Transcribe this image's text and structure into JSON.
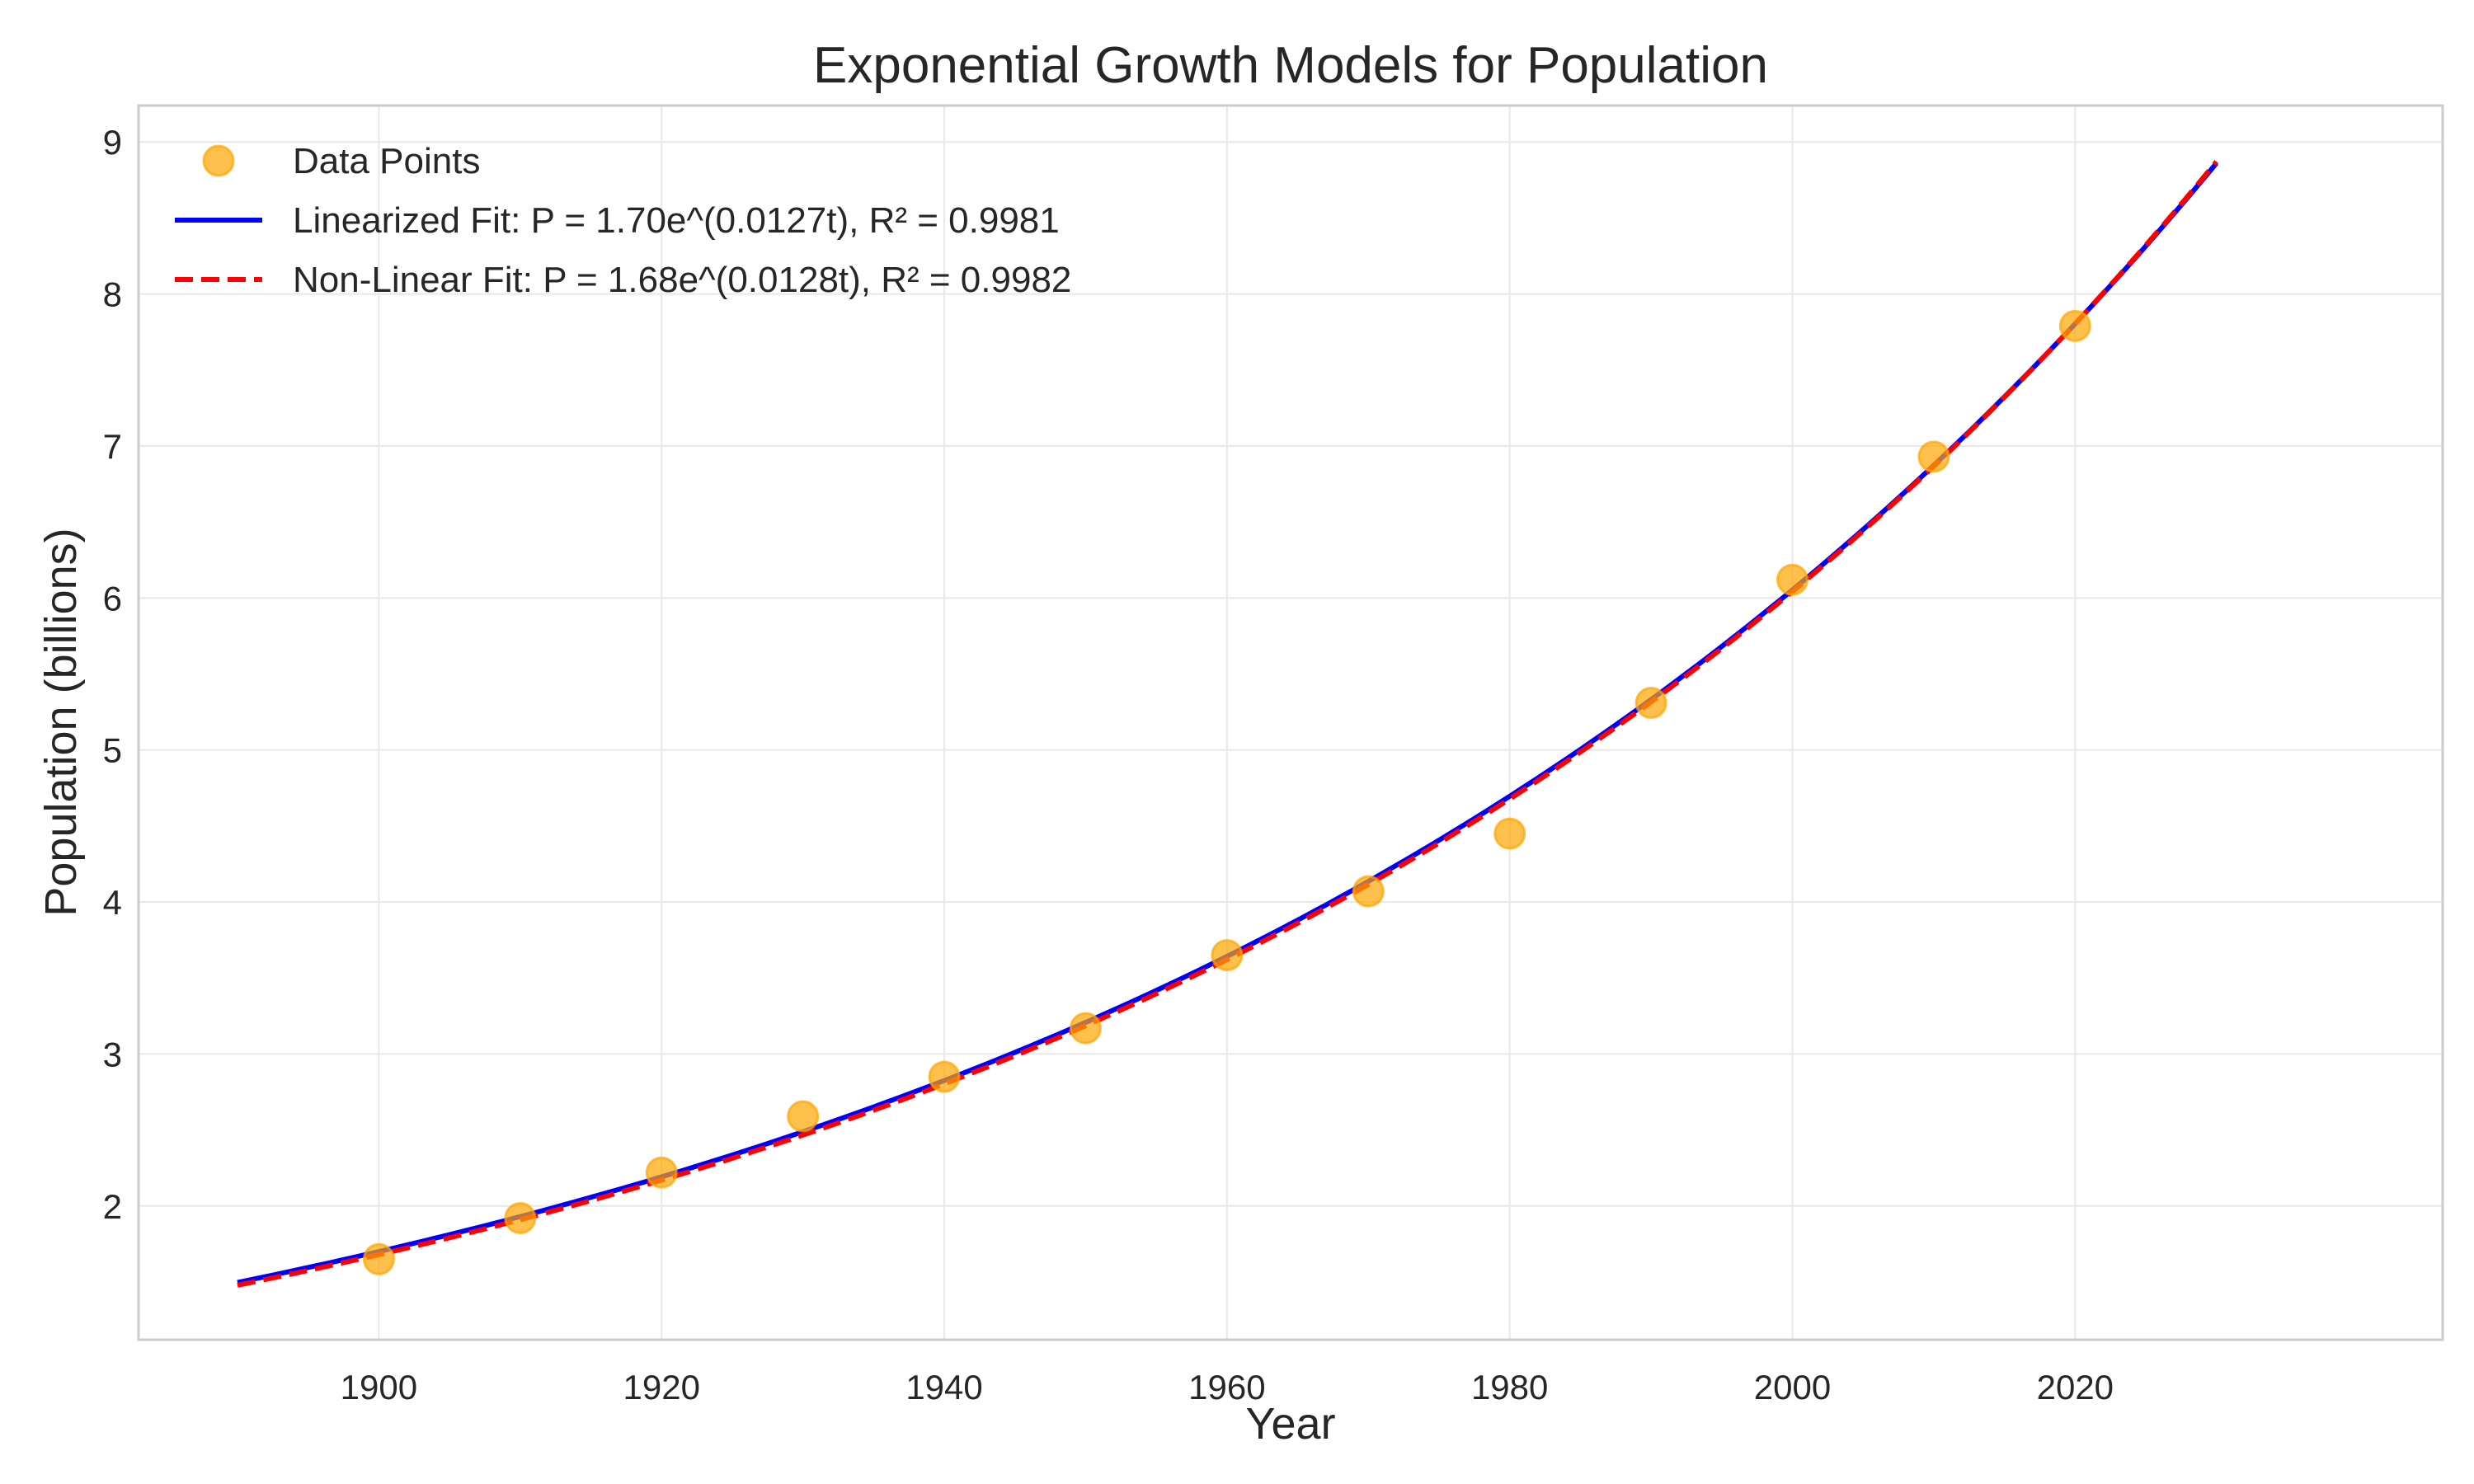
{
  "chart_data": {
    "type": "scatter",
    "title": "Exponential Growth Models for Population",
    "xlabel": "Year",
    "ylabel": "Population (billions)",
    "xlim": [
      1883,
      2046
    ],
    "ylim": [
      1.12,
      9.24
    ],
    "xticks": [
      1900,
      1920,
      1940,
      1960,
      1980,
      2000,
      2020
    ],
    "yticks": [
      2,
      3,
      4,
      5,
      6,
      7,
      8,
      9
    ],
    "grid": true,
    "legend_position": "upper-left",
    "colors": {
      "points": "#ffa500",
      "linearized": "#0000ff",
      "nonlinear": "#ff0000"
    },
    "points": {
      "name": "Data Points",
      "x": [
        1900,
        1910,
        1920,
        1930,
        1940,
        1950,
        1960,
        1970,
        1980,
        1990,
        2000,
        2010,
        2020
      ],
      "y": [
        1.65,
        1.92,
        2.22,
        2.59,
        2.85,
        3.17,
        3.65,
        4.07,
        4.45,
        5.31,
        6.12,
        6.93,
        7.79
      ]
    },
    "series": [
      {
        "name": "Linearized Fit: P = 1.70e^(0.0127t), R² = 0.9981",
        "style": "solid",
        "model": {
          "a": 1.7,
          "b": 0.0127,
          "t0": 1900
        },
        "x_range": [
          1890,
          2030
        ]
      },
      {
        "name": "Non-Linear Fit: P = 1.68e^(0.0128t), R² = 0.9982",
        "style": "dashed",
        "model": {
          "a": 1.68,
          "b": 0.0128,
          "t0": 1900
        },
        "x_range": [
          1890,
          2030
        ]
      }
    ]
  }
}
